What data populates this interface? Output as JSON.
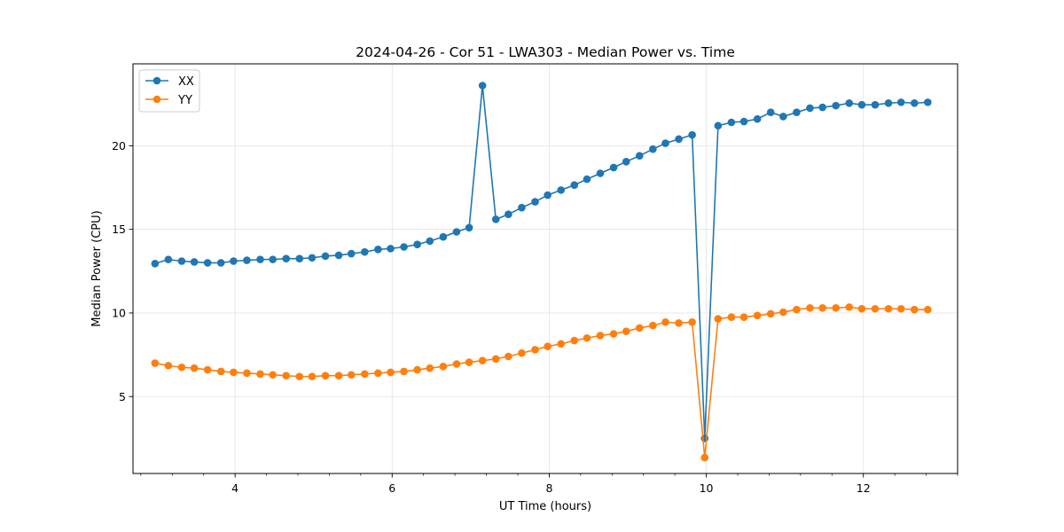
{
  "chart_data": {
    "type": "line",
    "title": "2024-04-26 - Cor 51 - LWA303 - Median Power vs. Time",
    "xlabel": "UT Time (hours)",
    "ylabel": "Median Power (CPU)",
    "xlim": [
      2.7,
      13.2
    ],
    "ylim": [
      0.4,
      24.9
    ],
    "xticks": [
      4,
      6,
      8,
      10,
      12
    ],
    "yticks": [
      5,
      10,
      15,
      20
    ],
    "xminor_step": 0.4,
    "grid": true,
    "legend_position": "top-left",
    "x": [
      2.98,
      3.15,
      3.32,
      3.48,
      3.65,
      3.82,
      3.98,
      4.15,
      4.32,
      4.48,
      4.65,
      4.82,
      4.98,
      5.15,
      5.32,
      5.48,
      5.65,
      5.82,
      5.98,
      6.15,
      6.32,
      6.48,
      6.65,
      6.82,
      6.98,
      7.15,
      7.32,
      7.48,
      7.65,
      7.82,
      7.98,
      8.15,
      8.32,
      8.48,
      8.65,
      8.82,
      8.98,
      9.15,
      9.32,
      9.48,
      9.65,
      9.82,
      9.98,
      10.15,
      10.32,
      10.48,
      10.65,
      10.82,
      10.98,
      11.15,
      11.32,
      11.48,
      11.65,
      11.82,
      11.98,
      12.15,
      12.32,
      12.48,
      12.65,
      12.82
    ],
    "series": [
      {
        "name": "XX",
        "color": "#1f77b4",
        "values": [
          12.95,
          13.2,
          13.1,
          13.05,
          13.0,
          13.0,
          13.1,
          13.15,
          13.2,
          13.2,
          13.25,
          13.25,
          13.3,
          13.4,
          13.45,
          13.55,
          13.65,
          13.8,
          13.85,
          13.95,
          14.1,
          14.3,
          14.55,
          14.85,
          15.1,
          23.6,
          15.6,
          15.9,
          16.3,
          16.65,
          17.05,
          17.35,
          17.65,
          18.0,
          18.35,
          18.7,
          19.05,
          19.4,
          19.8,
          20.15,
          20.4,
          20.65,
          2.5,
          21.2,
          21.4,
          21.45,
          21.6,
          22.0,
          21.75,
          22.0,
          22.25,
          22.3,
          22.4,
          22.55,
          22.45,
          22.45,
          22.55,
          22.6,
          22.55,
          22.6
        ]
      },
      {
        "name": "YY",
        "color": "#ff7f0e",
        "values": [
          7.0,
          6.85,
          6.75,
          6.7,
          6.6,
          6.5,
          6.45,
          6.4,
          6.35,
          6.3,
          6.25,
          6.2,
          6.2,
          6.25,
          6.25,
          6.3,
          6.35,
          6.4,
          6.45,
          6.5,
          6.6,
          6.7,
          6.8,
          6.95,
          7.05,
          7.15,
          7.25,
          7.4,
          7.6,
          7.8,
          8.0,
          8.15,
          8.35,
          8.5,
          8.65,
          8.75,
          8.9,
          9.1,
          9.25,
          9.45,
          9.4,
          9.45,
          1.35,
          9.65,
          9.75,
          9.75,
          9.85,
          9.95,
          10.05,
          10.2,
          10.3,
          10.3,
          10.3,
          10.35,
          10.25,
          10.25,
          10.25,
          10.25,
          10.2,
          10.2
        ]
      }
    ]
  }
}
